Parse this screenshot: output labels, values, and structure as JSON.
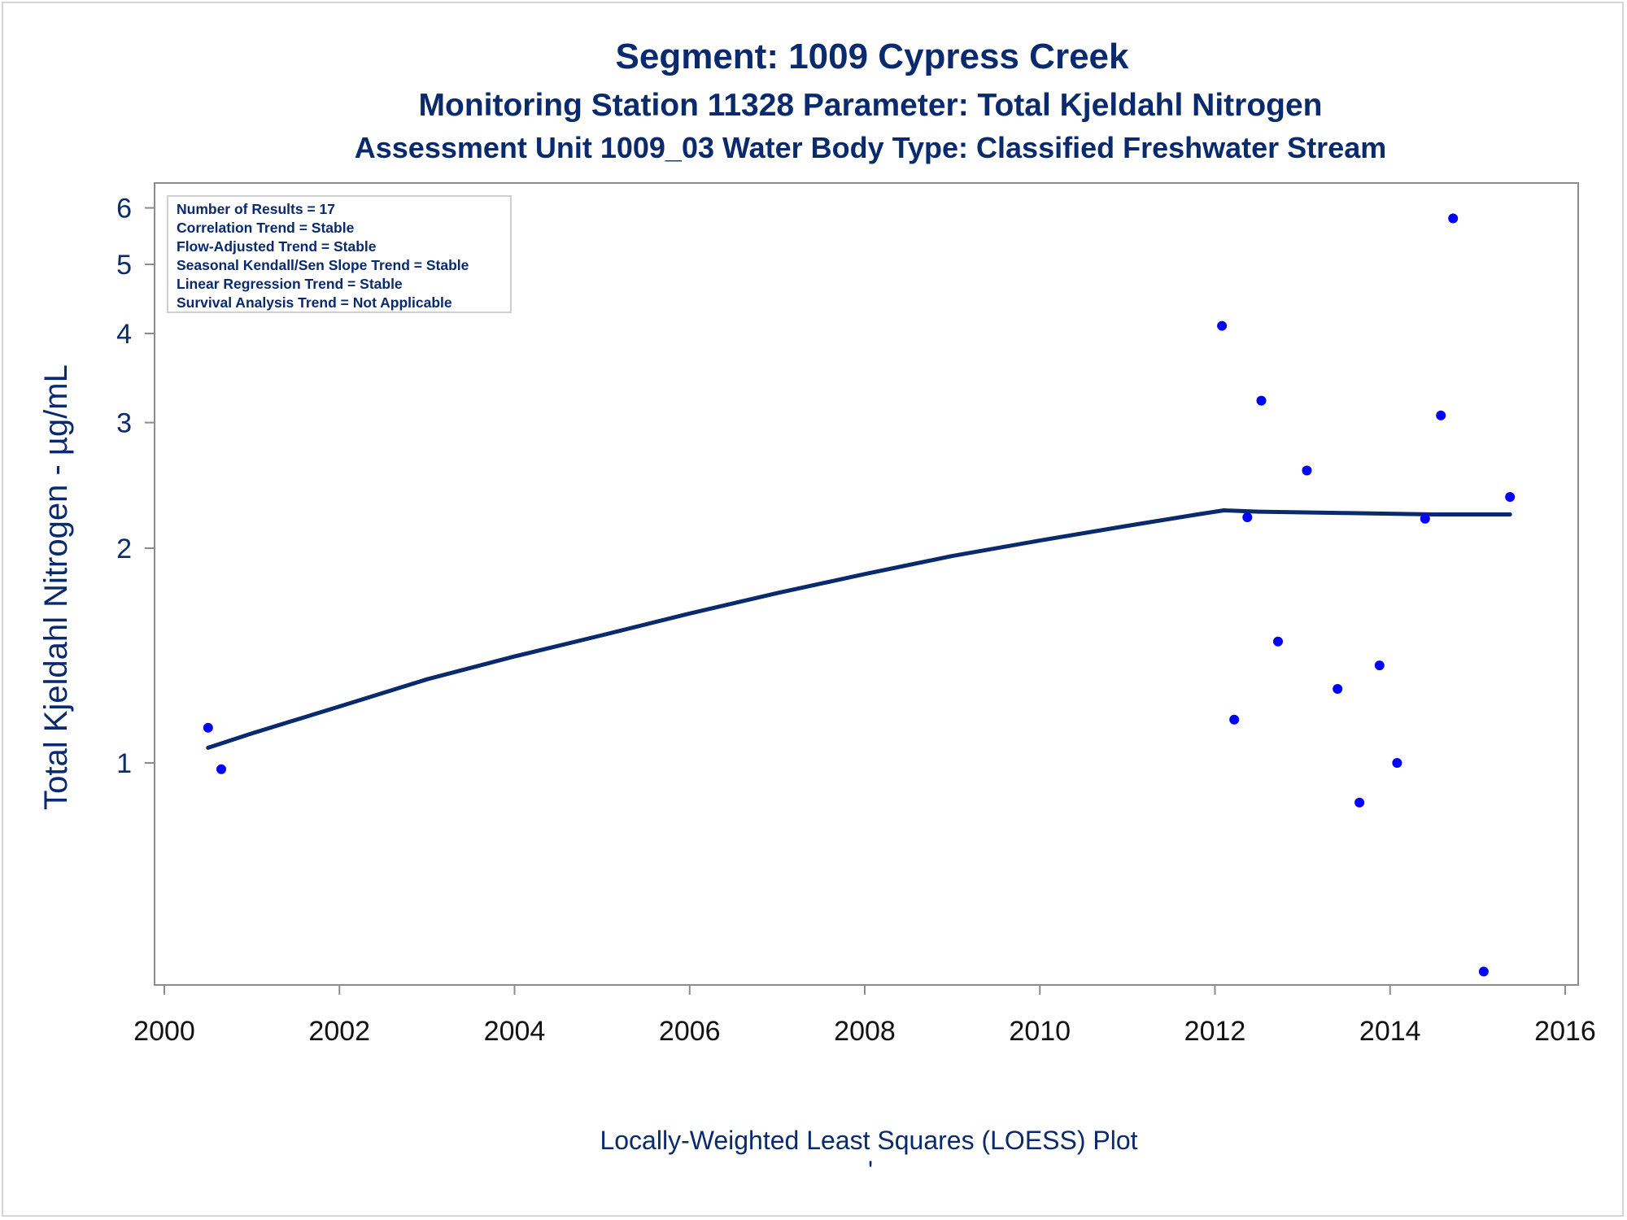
{
  "chart_data": {
    "type": "scatter",
    "title": "Segment: 1009  Cypress Creek",
    "subtitle": "Monitoring Station 11328 Parameter: Total Kjeldahl Nitrogen",
    "subtitle2": "Assessment Unit 1009_03   Water Body Type: Classified Freshwater Stream",
    "ylabel": "Total Kjeldahl Nitrogen -  µg/mL",
    "xlabel": "",
    "footnote": "Locally-Weighted Least Squares (LOESS) Plot",
    "footnote_mark": "'",
    "y_scale": "log",
    "xlim": [
      2000,
      2016
    ],
    "ylim": [
      0.5,
      6.4
    ],
    "x_ticks": [
      2000,
      2002,
      2004,
      2006,
      2008,
      2010,
      2012,
      2014,
      2016
    ],
    "y_ticks": [
      1,
      2,
      3,
      4,
      5,
      6
    ],
    "grid": false,
    "legend_position": "top-left",
    "info_box": [
      "Number of Results = 17",
      "Correlation Trend = Stable",
      "Flow-Adjusted Trend = Stable",
      "Seasonal Kendall/Sen Slope Trend = Stable",
      "Linear Regression Trend = Stable",
      "Survival Analysis Trend = Not Applicable"
    ],
    "series": [
      {
        "type": "scatter",
        "color": "#0000ff",
        "points": [
          [
            2000.5,
            1.12
          ],
          [
            2000.65,
            0.98
          ],
          [
            2012.08,
            4.1
          ],
          [
            2012.22,
            1.15
          ],
          [
            2012.37,
            2.21
          ],
          [
            2012.53,
            3.22
          ],
          [
            2012.72,
            1.48
          ],
          [
            2013.05,
            2.57
          ],
          [
            2013.4,
            1.27
          ],
          [
            2013.65,
            0.88
          ],
          [
            2013.88,
            1.37
          ],
          [
            2014.08,
            1.0
          ],
          [
            2014.4,
            2.2
          ],
          [
            2014.58,
            3.07
          ],
          [
            2014.72,
            5.8
          ],
          [
            2015.07,
            0.51
          ],
          [
            2015.37,
            2.36
          ]
        ]
      },
      {
        "type": "line",
        "color": "#0a2a6e",
        "points": [
          [
            2000.5,
            1.05
          ],
          [
            2001,
            1.1
          ],
          [
            2002,
            1.2
          ],
          [
            2003,
            1.31
          ],
          [
            2004,
            1.41
          ],
          [
            2005,
            1.51
          ],
          [
            2006,
            1.62
          ],
          [
            2007,
            1.73
          ],
          [
            2008,
            1.84
          ],
          [
            2009,
            1.95
          ],
          [
            2010,
            2.05
          ],
          [
            2011,
            2.15
          ],
          [
            2011.8,
            2.23
          ],
          [
            2012.1,
            2.26
          ],
          [
            2012.5,
            2.25
          ],
          [
            2013.5,
            2.24
          ],
          [
            2014.5,
            2.23
          ],
          [
            2015.37,
            2.23
          ]
        ]
      }
    ]
  }
}
